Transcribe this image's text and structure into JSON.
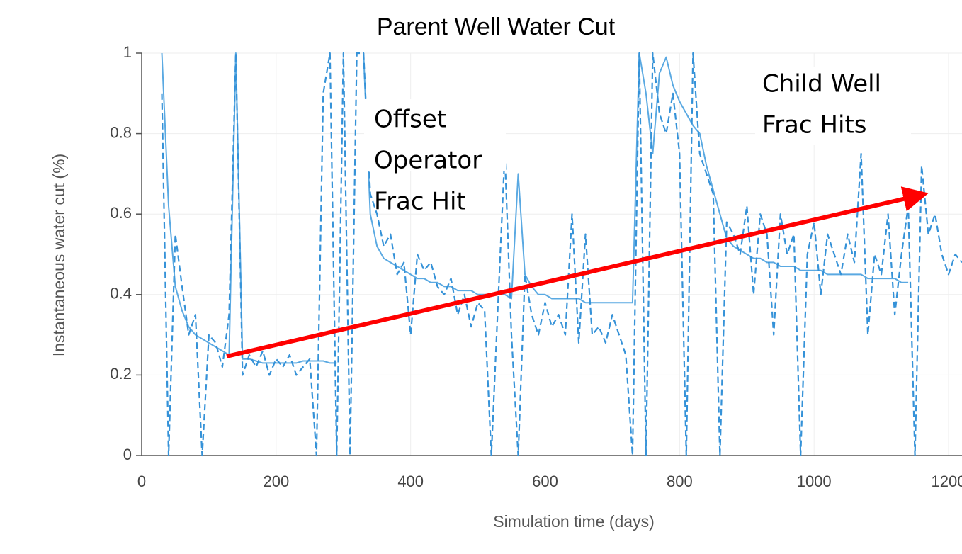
{
  "chart_data": {
    "type": "line",
    "title": "Parent Well Water Cut",
    "xlabel": "Simulation time (days)",
    "ylabel": "Instantaneous water cut (%)",
    "annotations": [
      [
        "Offset",
        "Operator",
        "Frac Hit"
      ],
      [
        "Child Well",
        "Frac Hits"
      ]
    ],
    "x": [
      30,
      40,
      50,
      60,
      70,
      80,
      90,
      100,
      110,
      120,
      130,
      140,
      150,
      160,
      170,
      180,
      190,
      200,
      210,
      220,
      230,
      240,
      250,
      260,
      270,
      280,
      290,
      300,
      310,
      320,
      330,
      340,
      350,
      360,
      370,
      380,
      390,
      400,
      410,
      420,
      430,
      440,
      450,
      460,
      470,
      480,
      490,
      500,
      510,
      520,
      530,
      540,
      550,
      560,
      570,
      580,
      590,
      600,
      610,
      620,
      630,
      640,
      650,
      660,
      670,
      680,
      690,
      700,
      710,
      720,
      730,
      740,
      750,
      760,
      770,
      780,
      790,
      800,
      810,
      820,
      830,
      840,
      850,
      860,
      870,
      880,
      890,
      900,
      910,
      920,
      930,
      940,
      950,
      960,
      970,
      980,
      990,
      1000,
      1010,
      1020,
      1030,
      1040,
      1050,
      1060,
      1070,
      1080,
      1090,
      1100,
      1110,
      1120,
      1130,
      1140,
      1150,
      1160,
      1170,
      1180,
      1190,
      1200,
      1210,
      1220
    ],
    "series": [
      {
        "color": "#5aa9e2",
        "dashed": false,
        "values": [
          1,
          0.62,
          0.42,
          0.36,
          0.32,
          0.3,
          0.29,
          0.28,
          0.27,
          0.26,
          0.25,
          1,
          0.24,
          0.24,
          0.235,
          0.23,
          0.23,
          0.23,
          0.23,
          0.23,
          0.23,
          0.235,
          0.235,
          0.235,
          0.235,
          0.23,
          0.23,
          null,
          null,
          null,
          1,
          0.6,
          0.52,
          0.49,
          0.48,
          0.47,
          0.46,
          0.45,
          0.44,
          0.44,
          0.43,
          0.43,
          0.42,
          0.42,
          0.41,
          0.41,
          0.41,
          0.4,
          0.4,
          0.4,
          0.4,
          0.4,
          0.39,
          0.7,
          0.45,
          0.42,
          0.4,
          0.4,
          0.39,
          0.39,
          0.39,
          0.39,
          0.39,
          0.38,
          0.38,
          0.38,
          0.38,
          0.38,
          0.38,
          0.38,
          0.38,
          1,
          0.9,
          0.75,
          0.95,
          0.99,
          0.92,
          0.88,
          0.85,
          0.82,
          0.8,
          0.72,
          0.66,
          0.6,
          0.54,
          0.52,
          0.51,
          0.5,
          0.49,
          0.49,
          0.48,
          0.48,
          0.47,
          0.47,
          0.47,
          0.46,
          0.46,
          0.46,
          0.46,
          0.45,
          0.45,
          0.45,
          0.45,
          0.45,
          0.45,
          0.44,
          0.44,
          0.44,
          0.44,
          0.44,
          0.43,
          0.43,
          null,
          null,
          null,
          null,
          null,
          null,
          null,
          null
        ]
      },
      {
        "color": "#3592d8",
        "dashed": true,
        "values": [
          0.9,
          0,
          0.55,
          0.42,
          0.3,
          0.35,
          0,
          0.3,
          0.28,
          0.22,
          0.35,
          1,
          0.2,
          0.25,
          0.22,
          0.26,
          0.2,
          0.24,
          0.22,
          0.25,
          0.2,
          0.22,
          0.24,
          0,
          0.9,
          1,
          0,
          1,
          0,
          1,
          1,
          0.65,
          0.6,
          0.52,
          0.55,
          0.45,
          0.48,
          0.3,
          0.5,
          0.46,
          0.48,
          0.42,
          0.4,
          0.44,
          0.35,
          0.4,
          0.32,
          0.38,
          0.36,
          0,
          0.38,
          0.75,
          0.3,
          0,
          0.45,
          0.35,
          0.3,
          0.38,
          0.32,
          0.35,
          0.3,
          0.6,
          0.28,
          0.55,
          0.3,
          0.32,
          0.28,
          0.35,
          0.3,
          0.25,
          0,
          1,
          0,
          1,
          0.85,
          0.8,
          0.9,
          0.75,
          0,
          1,
          0.75,
          0.7,
          0.65,
          0,
          0.58,
          0.55,
          0.5,
          0.62,
          0.4,
          0.6,
          0.55,
          0.3,
          0.6,
          0.5,
          0.55,
          0,
          0.5,
          0.58,
          0.4,
          0.55,
          0.5,
          0.45,
          0.55,
          0.48,
          0.75,
          0.3,
          0.5,
          0.45,
          0.6,
          0.35,
          0.5,
          0.62,
          0,
          0.72,
          0.55,
          0.6,
          0.5,
          0.45,
          0.5,
          0.48
        ]
      }
    ],
    "xlim": [
      0,
      1220
    ],
    "ylim": [
      0,
      1
    ],
    "xticks": [
      0,
      200,
      400,
      600,
      800,
      1000,
      1200
    ],
    "yticks": [
      0,
      0.2,
      0.4,
      0.6,
      0.8,
      1
    ],
    "grid": true
  }
}
